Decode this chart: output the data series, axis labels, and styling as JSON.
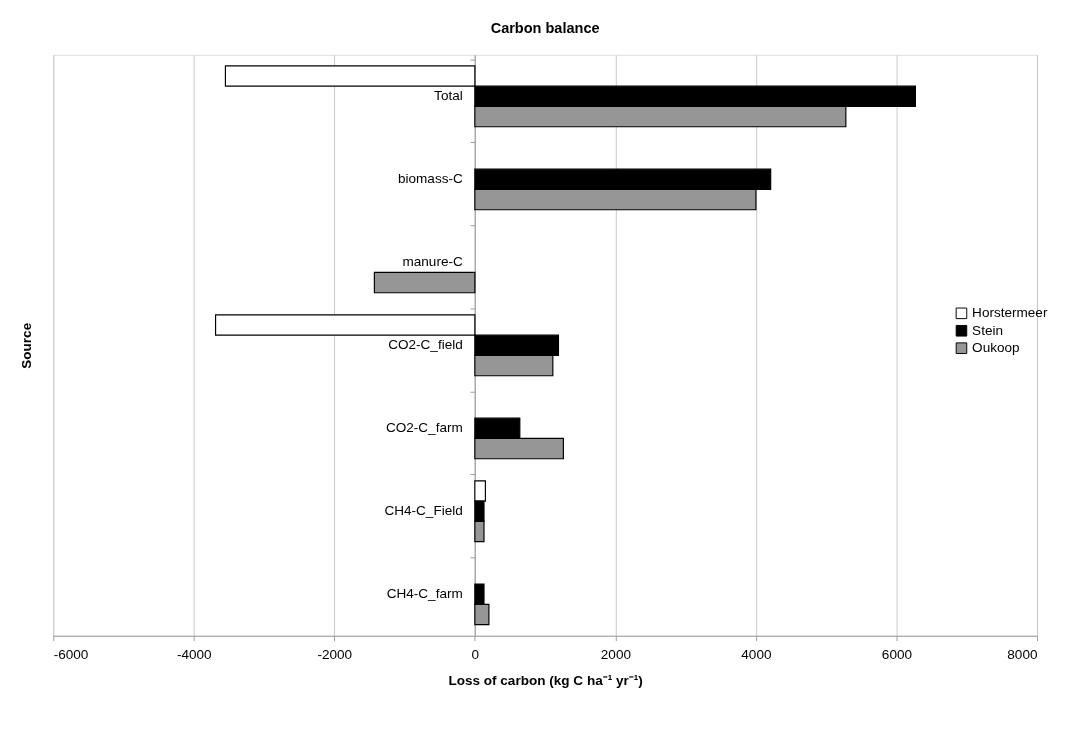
{
  "chart_data": {
    "type": "bar",
    "orientation": "horizontal",
    "title": "Carbon balance",
    "xlabel": "Loss of carbon (kg C ha⁻¹ yr⁻¹)",
    "ylabel": "Source",
    "categories": [
      "Total",
      "biomass-C",
      "manure-C",
      "CO2-C_field",
      "CO2-C_farm",
      "CH4-C_Field",
      "CH4-C_farm"
    ],
    "series": [
      {
        "name": "Horstermeer",
        "color": "#ffffff",
        "values": [
          -3550,
          null,
          null,
          -3690,
          null,
          150,
          null
        ]
      },
      {
        "name": "Stein",
        "color": "#000000",
        "values": [
          6270,
          4210,
          null,
          1190,
          640,
          130,
          130
        ]
      },
      {
        "name": "Oukoop",
        "color": "#969696",
        "values": [
          5280,
          4000,
          -1430,
          1110,
          1260,
          130,
          200
        ]
      }
    ],
    "xlim": [
      -6000,
      8000
    ],
    "xticks": [
      -6000,
      -4000,
      -2000,
      0,
      2000,
      4000,
      6000,
      8000
    ],
    "grid": "x",
    "legend": "right"
  }
}
